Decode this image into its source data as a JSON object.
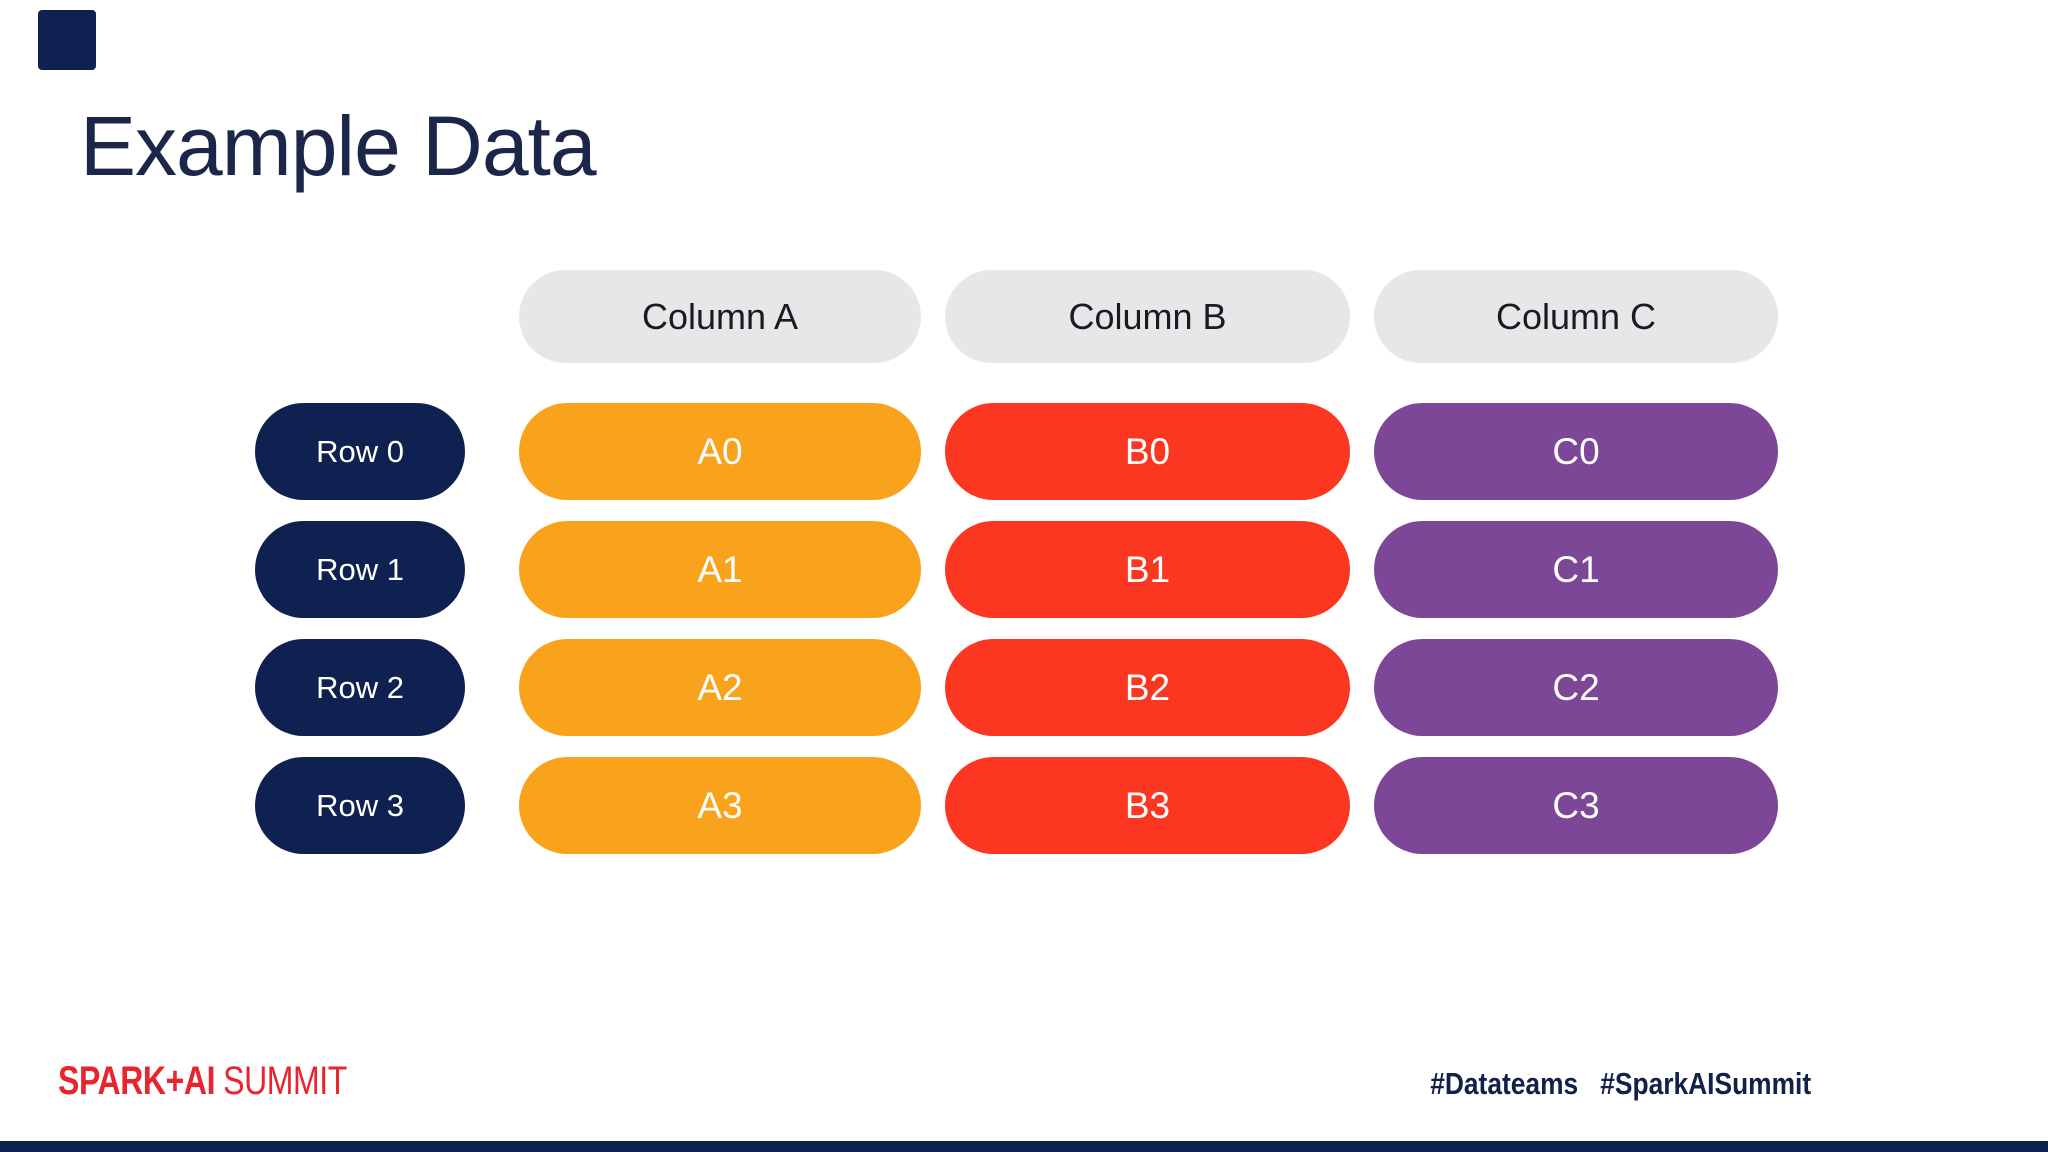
{
  "slide": {
    "title": "Example Data"
  },
  "table": {
    "column_headers": [
      "Column A",
      "Column B",
      "Column C"
    ],
    "row_labels": [
      "Row 0",
      "Row 1",
      "Row 2",
      "Row 3"
    ],
    "cells": [
      [
        "A0",
        "B0",
        "C0"
      ],
      [
        "A1",
        "B1",
        "C1"
      ],
      [
        "A2",
        "B2",
        "C2"
      ],
      [
        "A3",
        "B3",
        "C3"
      ]
    ]
  },
  "footer": {
    "logo_primary": "SPARK+AI",
    "logo_secondary": "SUMMIT",
    "hashtags": [
      "#Datateams",
      "#SparkAISummit"
    ]
  },
  "colors": {
    "background": "#ffffff",
    "navy": "#0f2150",
    "title_text": "#1b2649",
    "header_fill": "#e7e6e9",
    "header_text": "#1a1a1f",
    "column_a_fill": "#f9a21b",
    "column_b_fill": "#fb3721",
    "column_c_fill": "#7d4798",
    "cell_text": "#ffffff",
    "logo_red": "#e8242e",
    "hashtag_text": "#12204a"
  }
}
